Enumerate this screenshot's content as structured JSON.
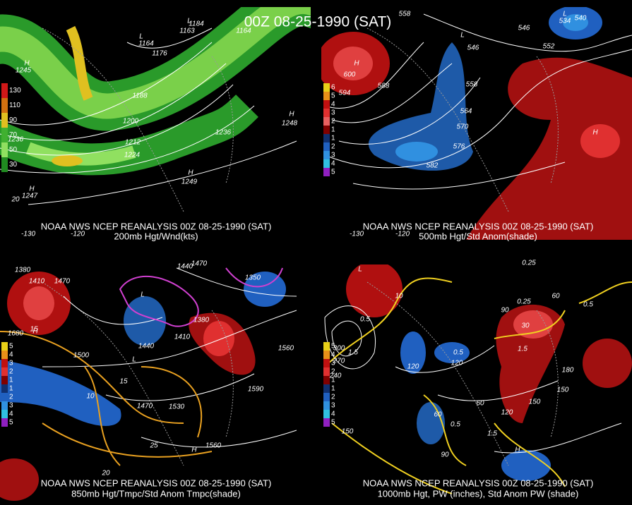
{
  "title": "00Z 08-25-1990 (SAT)",
  "panels": [
    {
      "source": "NOAA NWS NCEP REANALYSIS 00Z 08-25-1990 (SAT)",
      "caption": "200mb Hgt/Wnd(kts)",
      "legend": [
        {
          "label": "130",
          "color": "#d01818"
        },
        {
          "label": "110",
          "color": "#d07010"
        },
        {
          "label": "90",
          "color": "#e0c020"
        },
        {
          "label": "70",
          "color": "#40b030"
        },
        {
          "label": "50",
          "color": "#90e060"
        },
        {
          "label": "30",
          "color": "#208a20"
        }
      ],
      "labels": [
        "1164",
        "1164",
        "1176",
        "1188",
        "1200",
        "1212",
        "1224",
        "1236",
        "1236",
        "1245",
        "1248",
        "1247",
        "1249",
        "1184",
        "1163",
        "H",
        "H",
        "H",
        "H",
        "L",
        "L",
        "-130",
        "-120",
        "20"
      ]
    },
    {
      "source": "NOAA NWS NCEP REANALYSIS 00Z 08-25-1990 (SAT)",
      "caption": "500mb Hgt/Std Anom(shade)",
      "legend": [
        {
          "label": "6",
          "color": "#e8d018"
        },
        {
          "label": "5",
          "color": "#e89018"
        },
        {
          "label": "4",
          "color": "#c01010"
        },
        {
          "label": "3",
          "color": "#e03030"
        },
        {
          "label": "2",
          "color": "#e86060"
        },
        {
          "label": "1",
          "color": "#800000"
        },
        {
          "label": "1",
          "color": "#103070"
        },
        {
          "label": "2",
          "color": "#2060c0"
        },
        {
          "label": "3",
          "color": "#3090e0"
        },
        {
          "label": "4",
          "color": "#30c0e0"
        },
        {
          "label": "5",
          "color": "#9020c0"
        }
      ],
      "labels": [
        "558",
        "546",
        "552",
        "558",
        "564",
        "570",
        "576",
        "582",
        "588",
        "594",
        "600",
        "546",
        "534",
        "540",
        "H",
        "H",
        "L",
        "L",
        "-130",
        "-120"
      ]
    },
    {
      "source": "NOAA NWS NCEP REANALYSIS 00Z 08-25-1990 (SAT)",
      "caption": "850mb Hgt/Tmpc/Std Anom Tmpc(shade)",
      "legend": [
        {
          "label": "5",
          "color": "#e8d018"
        },
        {
          "label": "4",
          "color": "#e89018"
        },
        {
          "label": "3",
          "color": "#c01010"
        },
        {
          "label": "2",
          "color": "#e03030"
        },
        {
          "label": "1",
          "color": "#800000"
        },
        {
          "label": "1",
          "color": "#103070"
        },
        {
          "label": "2",
          "color": "#2060c0"
        },
        {
          "label": "3",
          "color": "#3090e0"
        },
        {
          "label": "4",
          "color": "#30c0e0"
        },
        {
          "label": "5",
          "color": "#9020c0"
        }
      ],
      "labels": [
        "1380",
        "1410",
        "1470",
        "1680",
        "1500",
        "1440",
        "1470",
        "1530",
        "1560",
        "1590",
        "1560",
        "1440",
        "1470",
        "1380",
        "1410",
        "1350",
        "15",
        "10",
        "15",
        "25",
        "20",
        "L",
        "L",
        "H",
        "H"
      ]
    },
    {
      "source": "NOAA NWS NCEP REANALYSIS 00Z 08-25-1990 (SAT)",
      "caption": "1000mb Hgt, PW (inches), Std Anom PW (shade)",
      "legend": [
        {
          "label": "5",
          "color": "#e8d018"
        },
        {
          "label": "4",
          "color": "#e89018"
        },
        {
          "label": "3",
          "color": "#c01010"
        },
        {
          "label": "2",
          "color": "#e03030"
        },
        {
          "label": "1",
          "color": "#800000"
        },
        {
          "label": "1",
          "color": "#103070"
        },
        {
          "label": "2",
          "color": "#2060c0"
        },
        {
          "label": "3",
          "color": "#3090e0"
        },
        {
          "label": "4",
          "color": "#30c0e0"
        },
        {
          "label": "5",
          "color": "#9020c0"
        }
      ],
      "labels": [
        "300",
        "270",
        "240",
        "150",
        "120",
        "120",
        "90",
        "60",
        "30",
        "60",
        "60",
        "90",
        "120",
        "150",
        "150",
        "180",
        "0.25",
        "0.25",
        "0.5",
        "0.5",
        "1.5",
        "1.5",
        "1.5",
        "0.5",
        "0.5",
        "10",
        "H",
        "L"
      ]
    }
  ]
}
